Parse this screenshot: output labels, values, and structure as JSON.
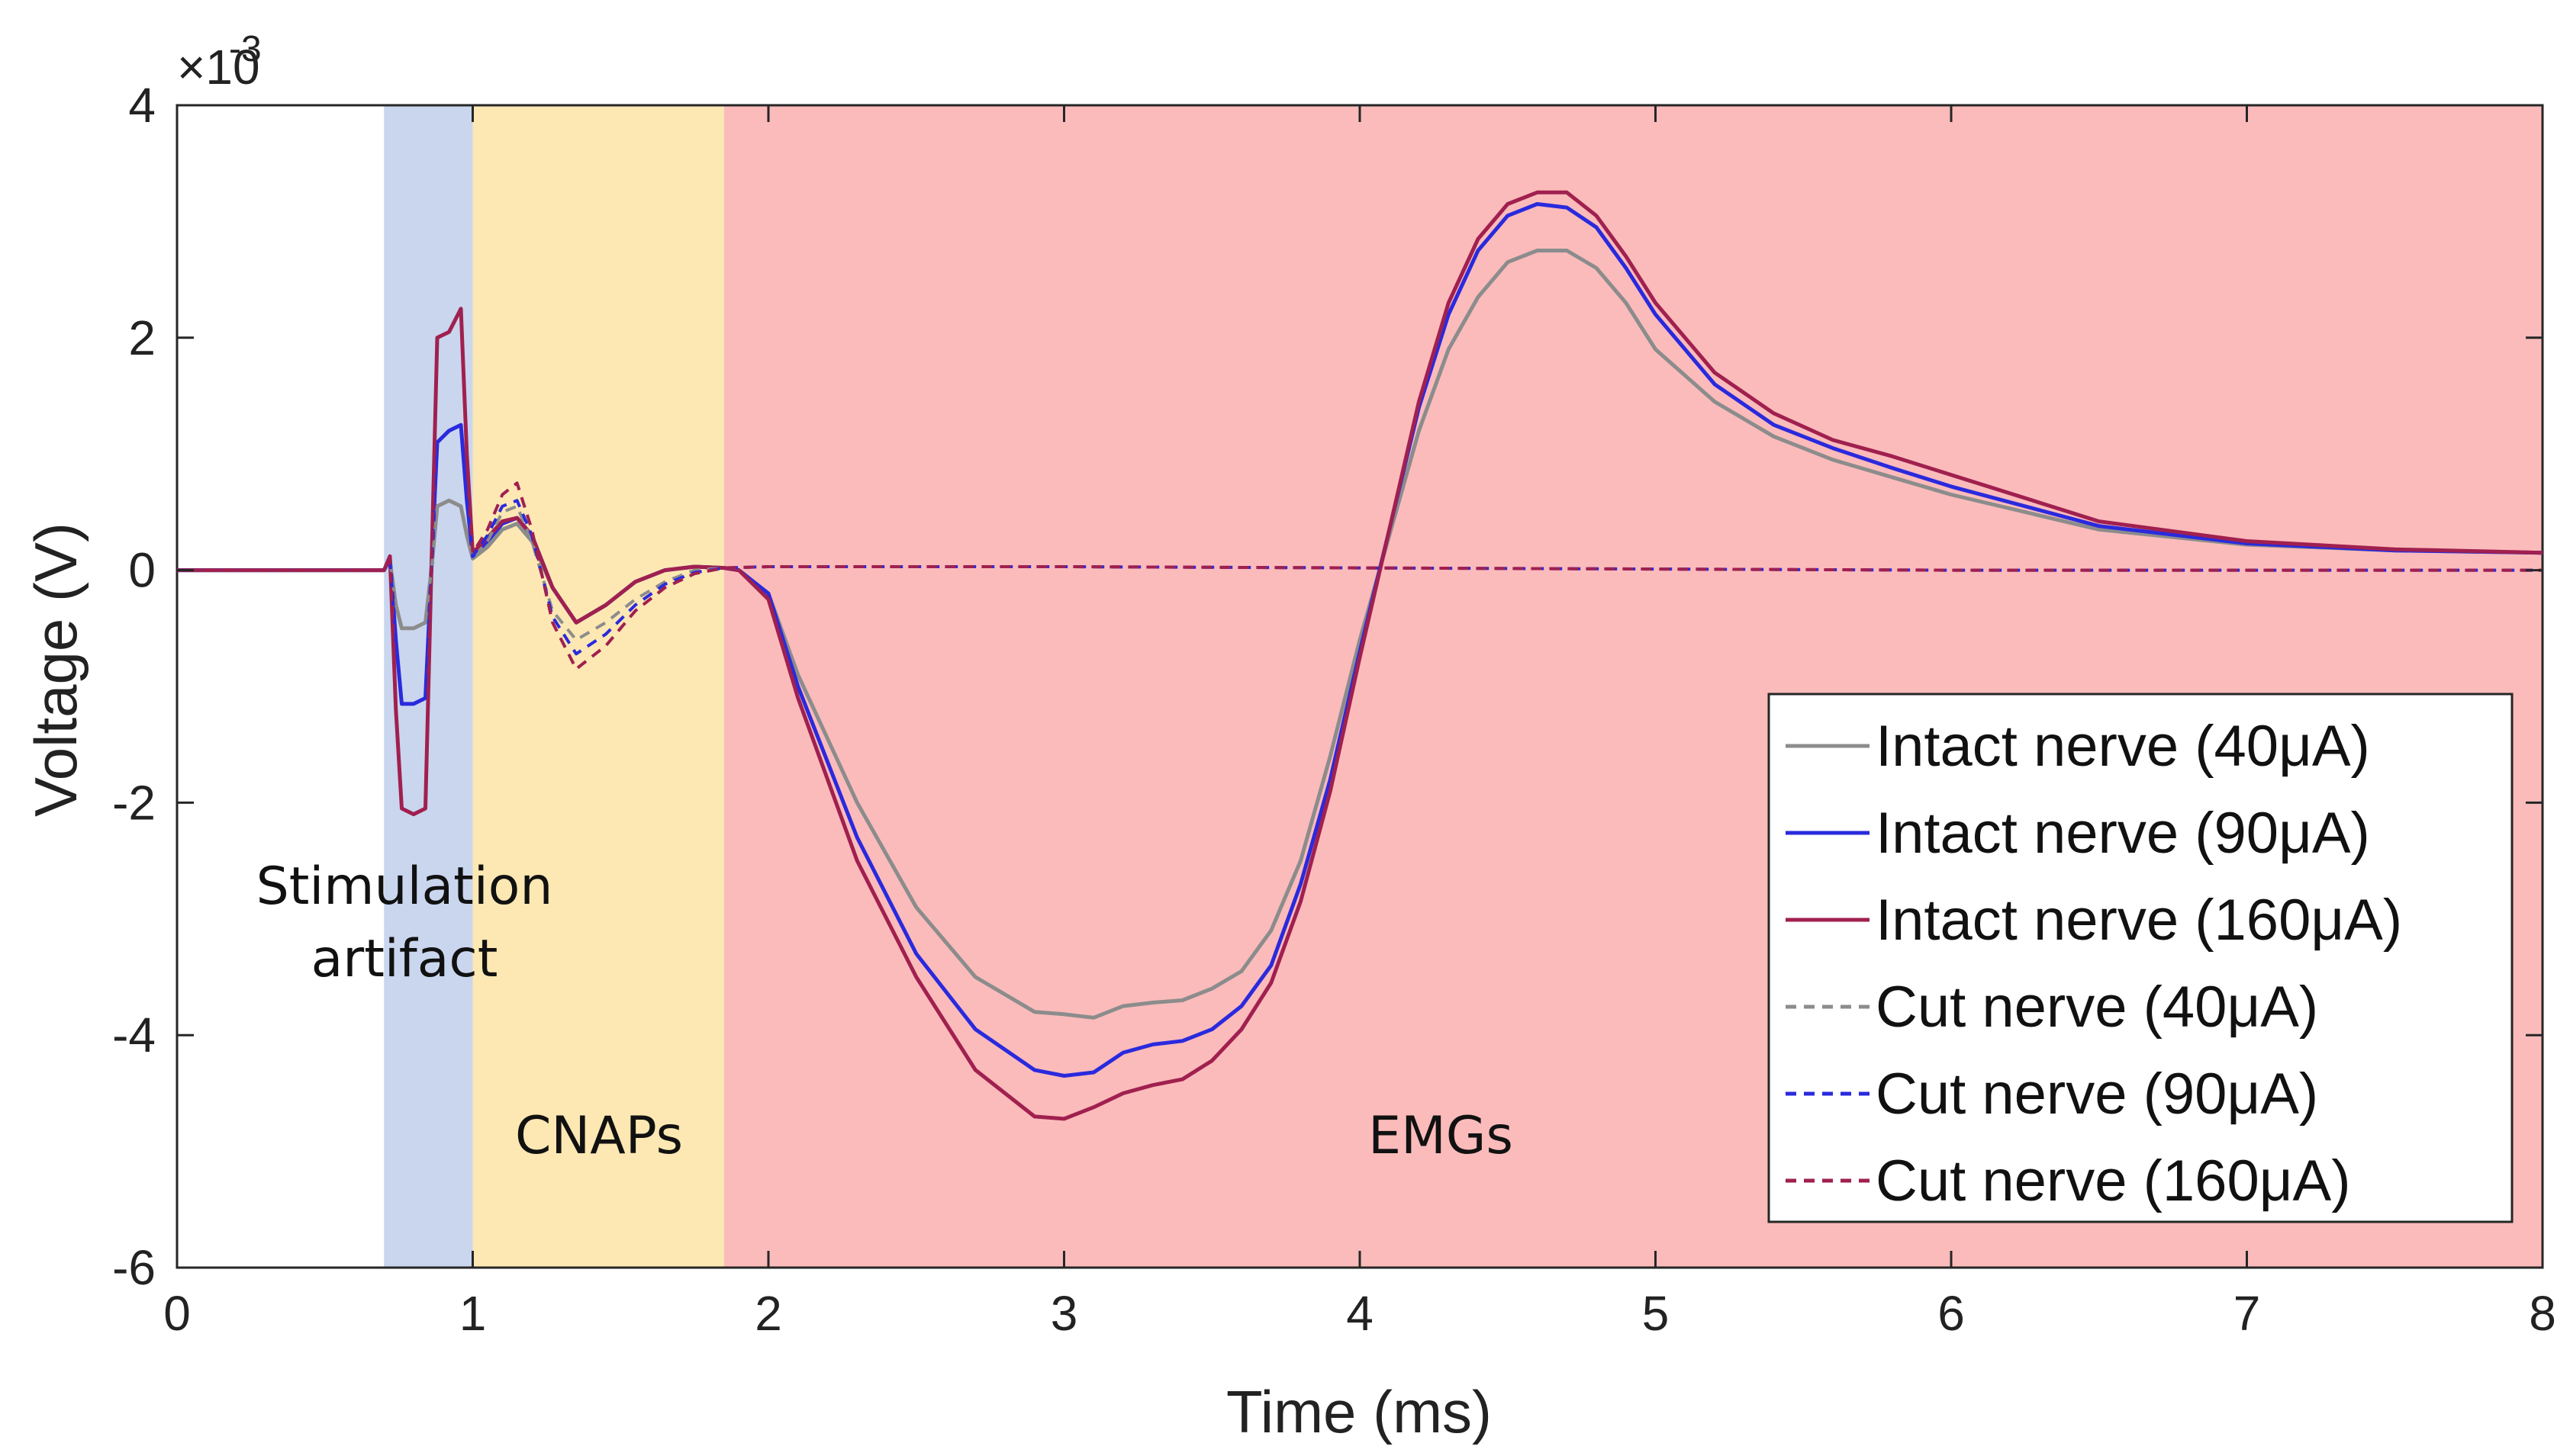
{
  "chart_data": {
    "type": "line",
    "title": "",
    "xlabel": "Time (ms)",
    "ylabel": "Voltage (V)",
    "xlim": [
      0,
      8
    ],
    "ylim": [
      -6,
      4
    ],
    "y_exponent_label": "×10",
    "y_exponent_power": "-3",
    "x_ticks": [
      0,
      1,
      2,
      3,
      4,
      5,
      6,
      7,
      8
    ],
    "y_ticks": [
      -6,
      -4,
      -2,
      0,
      2,
      4
    ],
    "regions": [
      {
        "name": "Stimulation artifact",
        "label_lines": [
          "Stimulation",
          "artifact"
        ],
        "x_start": 0.7,
        "x_end": 1.0,
        "color": "#c9d6ee"
      },
      {
        "name": "CNAPs",
        "label_lines": [
          "CNAPs"
        ],
        "x_start": 1.0,
        "x_end": 1.85,
        "color": "#fde8b3"
      },
      {
        "name": "EMGs",
        "label_lines": [
          "EMGs"
        ],
        "x_start": 1.85,
        "x_end": 8.0,
        "color": "#fbbbbb"
      }
    ],
    "legend_position": "bottom-right",
    "series": [
      {
        "name": "Intact nerve (40μA)",
        "color": "#8c8c8c",
        "dash": "solid",
        "x": [
          0,
          0.7,
          0.72,
          0.74,
          0.76,
          0.8,
          0.84,
          0.86,
          0.88,
          0.92,
          0.96,
          0.98,
          1.0,
          1.05,
          1.1,
          1.15,
          1.2,
          1.27,
          1.35,
          1.45,
          1.55,
          1.65,
          1.75,
          1.85,
          1.9,
          2.0,
          2.1,
          2.3,
          2.5,
          2.7,
          2.9,
          3.0,
          3.1,
          3.2,
          3.3,
          3.4,
          3.5,
          3.6,
          3.7,
          3.8,
          3.9,
          4.0,
          4.1,
          4.2,
          4.3,
          4.4,
          4.5,
          4.6,
          4.7,
          4.8,
          4.9,
          5.0,
          5.2,
          5.4,
          5.6,
          5.8,
          6.0,
          6.5,
          7.0,
          7.5,
          8.0
        ],
        "values": [
          0,
          0,
          0.08,
          -0.3,
          -0.5,
          -0.5,
          -0.45,
          0,
          0.55,
          0.6,
          0.55,
          0.3,
          0.1,
          0.2,
          0.35,
          0.4,
          0.25,
          -0.15,
          -0.45,
          -0.3,
          -0.1,
          0.0,
          0.03,
          0.02,
          0,
          -0.2,
          -0.9,
          -2.0,
          -2.9,
          -3.5,
          -3.8,
          -3.82,
          -3.85,
          -3.75,
          -3.72,
          -3.7,
          -3.6,
          -3.45,
          -3.1,
          -2.5,
          -1.6,
          -0.6,
          0.3,
          1.2,
          1.9,
          2.35,
          2.65,
          2.75,
          2.75,
          2.6,
          2.3,
          1.9,
          1.45,
          1.15,
          0.95,
          0.8,
          0.65,
          0.35,
          0.22,
          0.17,
          0.15
        ]
      },
      {
        "name": "Intact nerve (90μA)",
        "color": "#2a2add",
        "dash": "solid",
        "x": [
          0,
          0.7,
          0.72,
          0.74,
          0.76,
          0.8,
          0.84,
          0.86,
          0.88,
          0.92,
          0.96,
          0.98,
          1.0,
          1.05,
          1.1,
          1.15,
          1.2,
          1.27,
          1.35,
          1.45,
          1.55,
          1.65,
          1.75,
          1.85,
          1.9,
          2.0,
          2.1,
          2.3,
          2.5,
          2.7,
          2.9,
          3.0,
          3.1,
          3.2,
          3.3,
          3.4,
          3.5,
          3.6,
          3.7,
          3.8,
          3.9,
          4.0,
          4.1,
          4.2,
          4.3,
          4.4,
          4.5,
          4.6,
          4.7,
          4.8,
          4.9,
          5.0,
          5.2,
          5.4,
          5.6,
          5.8,
          6.0,
          6.5,
          7.0,
          7.5,
          8.0
        ],
        "values": [
          0,
          0,
          0.1,
          -0.6,
          -1.15,
          -1.15,
          -1.1,
          0,
          1.1,
          1.2,
          1.25,
          0.6,
          0.12,
          0.25,
          0.4,
          0.45,
          0.3,
          -0.15,
          -0.45,
          -0.3,
          -0.1,
          0.0,
          0.03,
          0.02,
          0,
          -0.2,
          -1.0,
          -2.3,
          -3.3,
          -3.95,
          -4.3,
          -4.35,
          -4.32,
          -4.15,
          -4.08,
          -4.05,
          -3.95,
          -3.75,
          -3.4,
          -2.7,
          -1.8,
          -0.7,
          0.35,
          1.4,
          2.2,
          2.75,
          3.05,
          3.15,
          3.12,
          2.95,
          2.6,
          2.2,
          1.6,
          1.25,
          1.05,
          0.88,
          0.72,
          0.38,
          0.23,
          0.17,
          0.15
        ]
      },
      {
        "name": "Intact nerve (160μA)",
        "color": "#a0204f",
        "dash": "solid",
        "x": [
          0,
          0.7,
          0.72,
          0.74,
          0.76,
          0.8,
          0.84,
          0.86,
          0.88,
          0.92,
          0.96,
          0.98,
          1.0,
          1.05,
          1.1,
          1.15,
          1.2,
          1.27,
          1.35,
          1.45,
          1.55,
          1.65,
          1.75,
          1.85,
          1.9,
          2.0,
          2.1,
          2.3,
          2.5,
          2.7,
          2.9,
          3.0,
          3.1,
          3.2,
          3.3,
          3.4,
          3.5,
          3.6,
          3.7,
          3.8,
          3.9,
          4.0,
          4.1,
          4.2,
          4.3,
          4.4,
          4.5,
          4.6,
          4.7,
          4.8,
          4.9,
          5.0,
          5.2,
          5.4,
          5.6,
          5.8,
          6.0,
          6.5,
          7.0,
          7.5,
          8.0
        ],
        "values": [
          0,
          0,
          0.12,
          -1.2,
          -2.05,
          -2.1,
          -2.05,
          0,
          2.0,
          2.05,
          2.25,
          1.0,
          0.15,
          0.28,
          0.42,
          0.45,
          0.3,
          -0.15,
          -0.45,
          -0.3,
          -0.1,
          0.0,
          0.03,
          0.02,
          0,
          -0.25,
          -1.1,
          -2.5,
          -3.5,
          -4.3,
          -4.7,
          -4.72,
          -4.62,
          -4.5,
          -4.43,
          -4.38,
          -4.22,
          -3.95,
          -3.55,
          -2.85,
          -1.9,
          -0.75,
          0.35,
          1.45,
          2.3,
          2.85,
          3.15,
          3.25,
          3.25,
          3.05,
          2.7,
          2.3,
          1.7,
          1.35,
          1.12,
          0.98,
          0.82,
          0.42,
          0.25,
          0.18,
          0.15
        ]
      },
      {
        "name": "Cut nerve (40μA)",
        "color": "#8c8c8c",
        "dash": "dashed",
        "x": [
          0,
          0.7,
          0.72,
          0.74,
          0.76,
          0.8,
          0.84,
          0.86,
          0.88,
          0.92,
          0.96,
          0.98,
          1.0,
          1.05,
          1.1,
          1.15,
          1.2,
          1.27,
          1.35,
          1.45,
          1.55,
          1.65,
          1.75,
          1.85,
          2.0,
          3.0,
          4.0,
          5.0,
          6.0,
          7.0,
          8.0
        ],
        "values": [
          0,
          0,
          0.08,
          -0.3,
          -0.5,
          -0.5,
          -0.45,
          0,
          0.55,
          0.6,
          0.55,
          0.3,
          0.1,
          0.25,
          0.5,
          0.55,
          0.25,
          -0.35,
          -0.6,
          -0.45,
          -0.25,
          -0.1,
          0.0,
          0.02,
          0.03,
          0.03,
          0.02,
          0.01,
          0.0,
          0.0,
          0.0
        ]
      },
      {
        "name": "Cut nerve (90μA)",
        "color": "#2a2add",
        "dash": "dashed",
        "x": [
          0,
          0.7,
          0.72,
          0.74,
          0.76,
          0.8,
          0.84,
          0.86,
          0.88,
          0.92,
          0.96,
          0.98,
          1.0,
          1.05,
          1.1,
          1.15,
          1.2,
          1.27,
          1.35,
          1.45,
          1.55,
          1.65,
          1.75,
          1.85,
          2.0,
          3.0,
          4.0,
          5.0,
          6.0,
          7.0,
          8.0
        ],
        "values": [
          0,
          0,
          0.1,
          -0.6,
          -1.15,
          -1.15,
          -1.1,
          0,
          1.1,
          1.2,
          1.25,
          0.6,
          0.12,
          0.3,
          0.55,
          0.6,
          0.3,
          -0.4,
          -0.72,
          -0.55,
          -0.3,
          -0.12,
          -0.02,
          0.02,
          0.03,
          0.03,
          0.02,
          0.01,
          0.0,
          0.0,
          0.0
        ]
      },
      {
        "name": "Cut nerve (160μA)",
        "color": "#a0204f",
        "dash": "dashed",
        "x": [
          0,
          0.7,
          0.72,
          0.74,
          0.76,
          0.8,
          0.84,
          0.86,
          0.88,
          0.92,
          0.96,
          0.98,
          1.0,
          1.05,
          1.1,
          1.15,
          1.2,
          1.27,
          1.35,
          1.45,
          1.55,
          1.65,
          1.75,
          1.85,
          2.0,
          3.0,
          4.0,
          5.0,
          6.0,
          7.0,
          8.0
        ],
        "values": [
          0,
          0,
          0.12,
          -1.2,
          -2.05,
          -2.1,
          -2.05,
          0,
          2.0,
          2.05,
          2.25,
          1.0,
          0.15,
          0.35,
          0.65,
          0.75,
          0.35,
          -0.45,
          -0.85,
          -0.65,
          -0.35,
          -0.15,
          -0.03,
          0.02,
          0.03,
          0.03,
          0.02,
          0.01,
          0.0,
          0.0,
          0.0
        ]
      }
    ]
  }
}
